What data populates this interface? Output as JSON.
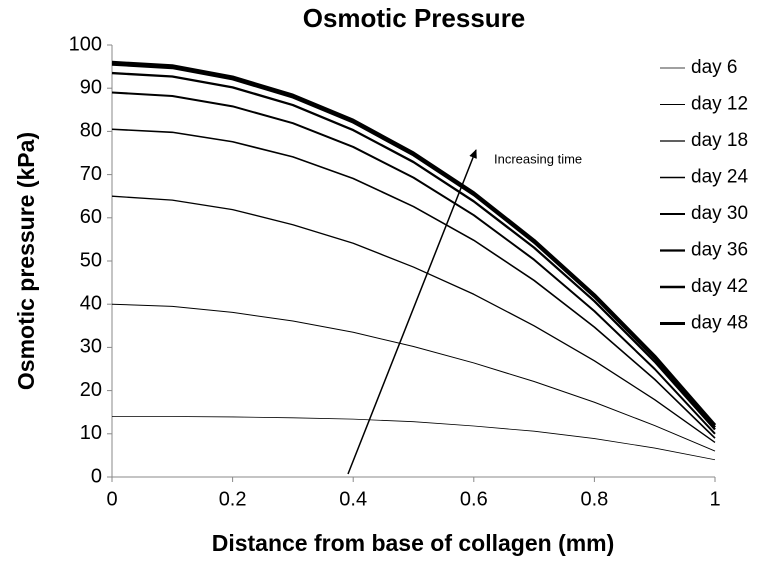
{
  "chart_data": {
    "type": "line",
    "title": "Osmotic Pressure",
    "x_label": "Distance from base of collagen (mm)",
    "y_label": "Osmotic pressure (kPa)",
    "annotation": "Increasing time",
    "x": [
      0,
      0.1,
      0.2,
      0.3,
      0.4,
      0.5,
      0.6,
      0.7,
      0.8,
      0.9,
      1
    ],
    "series": [
      {
        "name": "day 6",
        "color": "#000000",
        "width": 0.8,
        "values": [
          14,
          14,
          13.9,
          13.7,
          13.4,
          12.8,
          11.8,
          10.6,
          8.9,
          6.7,
          4
        ]
      },
      {
        "name": "day 12",
        "color": "#000000",
        "width": 1.0,
        "values": [
          40,
          39.5,
          38.1,
          36.1,
          33.5,
          30.2,
          26.4,
          22.1,
          17.3,
          11.9,
          6
        ]
      },
      {
        "name": "day 18",
        "color": "#000000",
        "width": 1.3,
        "values": [
          65,
          64.1,
          61.9,
          58.4,
          54.1,
          48.6,
          42.3,
          35,
          26.9,
          17.9,
          8
        ]
      },
      {
        "name": "day 24",
        "color": "#000000",
        "width": 1.6,
        "values": [
          80.5,
          79.8,
          77.6,
          74.1,
          69.1,
          62.6,
          54.8,
          45.5,
          34.7,
          22.6,
          9
        ]
      },
      {
        "name": "day 30",
        "color": "#000000",
        "width": 2.0,
        "values": [
          89,
          88.2,
          85.8,
          81.9,
          76.4,
          69.3,
          60.6,
          50.3,
          38.4,
          25,
          10
        ]
      },
      {
        "name": "day 36",
        "color": "#000000",
        "width": 2.3,
        "values": [
          93.5,
          92.7,
          90.2,
          86.1,
          80.3,
          72.9,
          63.8,
          53.1,
          40.7,
          26.7,
          11
        ]
      },
      {
        "name": "day 42",
        "color": "#000000",
        "width": 2.6,
        "values": [
          95.5,
          94.7,
          92.1,
          87.9,
          82.1,
          74.5,
          65.3,
          54.3,
          41.7,
          27.5,
          11.5
        ]
      },
      {
        "name": "day 48",
        "color": "#000000",
        "width": 3.0,
        "values": [
          96,
          95.2,
          92.6,
          88.4,
          82.6,
          75,
          65.8,
          54.8,
          42.2,
          28,
          12
        ]
      }
    ],
    "xlim": [
      0,
      1
    ],
    "xticks": [
      0,
      0.2,
      0.4,
      0.6,
      0.8,
      1
    ],
    "ylim": [
      0,
      100
    ],
    "yticks": [
      0,
      10,
      20,
      30,
      40,
      50,
      60,
      70,
      80,
      90,
      100
    ],
    "grid": false,
    "legend": "right"
  }
}
